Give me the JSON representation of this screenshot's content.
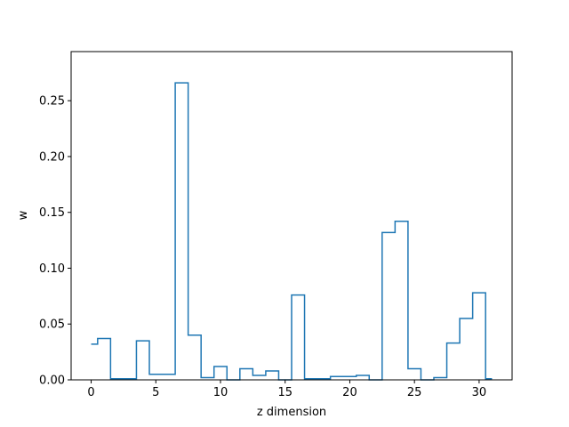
{
  "chart_data": {
    "type": "line",
    "style": "step-mid",
    "title": "",
    "xlabel": "z dimension",
    "ylabel": "w",
    "xlim": [
      -1.55,
      32.55
    ],
    "ylim": [
      0,
      0.294
    ],
    "grid": false,
    "x_ticks": [
      0,
      5,
      10,
      15,
      20,
      25,
      30
    ],
    "x_tick_labels": [
      "0",
      "5",
      "10",
      "15",
      "20",
      "25",
      "30"
    ],
    "y_ticks": [
      0.0,
      0.05,
      0.1,
      0.15,
      0.2,
      0.25
    ],
    "y_tick_labels": [
      "0.00",
      "0.05",
      "0.10",
      "0.15",
      "0.20",
      "0.25"
    ],
    "line_color": "#1f77b4",
    "series": [
      {
        "x": [
          0,
          1,
          2,
          3,
          4,
          5,
          6,
          7,
          8,
          9,
          10,
          11,
          12,
          13,
          14,
          15,
          16,
          17,
          18,
          19,
          20,
          21,
          22,
          23,
          24,
          25,
          26,
          27,
          28,
          29,
          30,
          31
        ],
        "values": [
          0.032,
          0.037,
          0.001,
          0.001,
          0.035,
          0.005,
          0.005,
          0.266,
          0.04,
          0.002,
          0.012,
          0.0,
          0.01,
          0.004,
          0.008,
          0.0,
          0.076,
          0.001,
          0.001,
          0.003,
          0.003,
          0.004,
          0.0,
          0.132,
          0.142,
          0.01,
          0.0,
          0.002,
          0.033,
          0.055,
          0.078,
          0.001
        ]
      }
    ]
  }
}
